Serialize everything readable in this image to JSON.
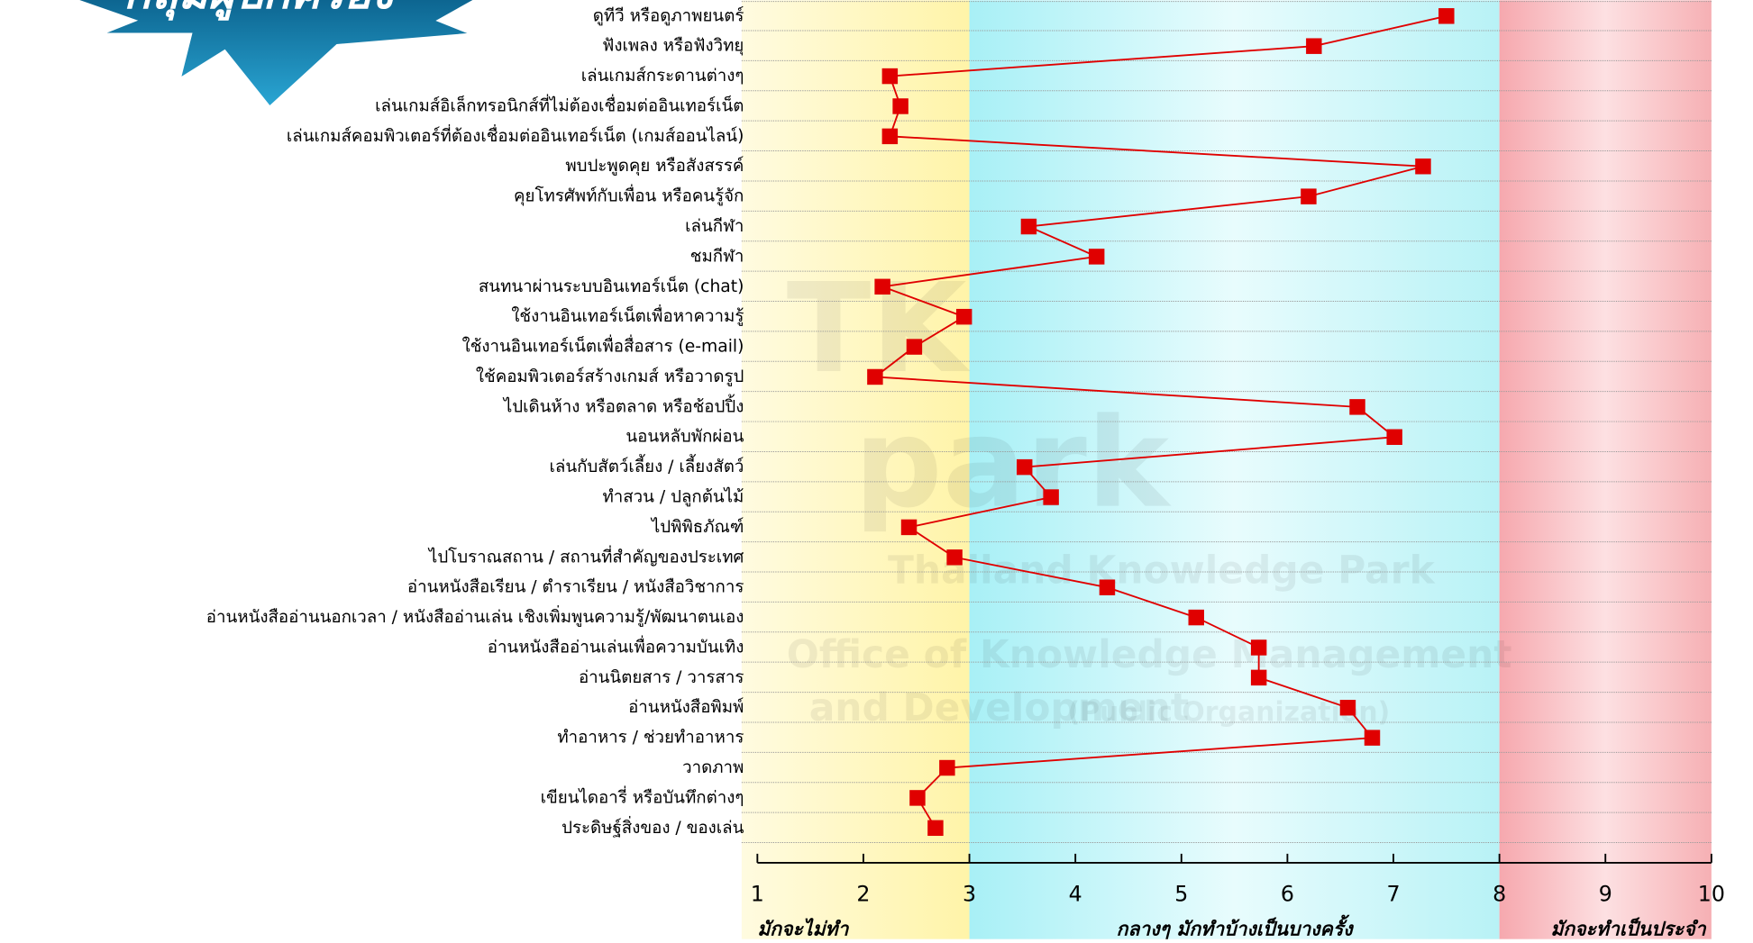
{
  "chart_data": {
    "type": "line",
    "badge": "กลุ่มผู้ปกครอง",
    "watermark": [
      "TK",
      "park",
      "Thailand Knowledge Park",
      "Office of Knowledge Management",
      "and Development",
      "(Public Organization)"
    ],
    "categories": [
      "ดูทีวี หรือดูภาพยนตร์",
      "ฟังเพลง หรือฟังวิทยุ",
      "เล่นเกมส์กระดานต่างๆ",
      "เล่นเกมส์อิเล็กทรอนิกส์ที่ไม่ต้องเชื่อมต่ออินเทอร์เน็ต",
      "เล่นเกมส์คอมพิวเตอร์ที่ต้องเชื่อมต่ออินเทอร์เน็ต (เกมส์ออนไลน์)",
      "พบปะพูดคุย หรือสังสรรค์",
      "คุยโทรศัพท์กับเพื่อน หรือคนรู้จัก",
      "เล่นกีฬา",
      "ชมกีฬา",
      "สนทนาผ่านระบบอินเทอร์เน็ต (chat)",
      "ใช้งานอินเทอร์เน็ตเพื่อหาความรู้",
      "ใช้งานอินเทอร์เน็ตเพื่อสื่อสาร (e-mail)",
      "ใช้คอมพิวเตอร์สร้างเกมส์ หรือวาดรูป",
      "ไปเดินห้าง หรือตลาด หรือช้อปปิ้ง",
      "นอนหลับพักผ่อน",
      "เล่นกับสัตว์เลี้ยง / เลี้ยงสัตว์",
      "ทำสวน / ปลูกต้นไม้",
      "ไปพิพิธภัณฑ์",
      "ไปโบราณสถาน / สถานที่สำคัญของประเทศ",
      "อ่านหนังสือเรียน / ตำราเรียน / หนังสือวิชาการ",
      "อ่านหนังสืออ่านนอกเวลา / หนังสืออ่านเล่น เชิงเพิ่มพูนความรู้/พัฒนาตนเอง",
      "อ่านหนังสืออ่านเล่นเพื่อความบันเทิง",
      "อ่านนิตยสาร / วารสาร",
      "อ่านหนังสือพิมพ์",
      "ทำอาหาร / ช่วยทำอาหาร",
      "วาดภาพ",
      "เขียนไดอารี่ หรือบันทึกต่างๆ",
      "ประดิษฐ์สิ่งของ / ของเล่น"
    ],
    "series": [
      {
        "color": "#e00000",
        "values": [
          7.5,
          6.25,
          2.25,
          2.35,
          2.25,
          7.28,
          6.2,
          3.56,
          4.2,
          2.18,
          2.95,
          2.48,
          2.11,
          6.66,
          7.01,
          3.52,
          3.77,
          2.43,
          2.86,
          4.3,
          5.14,
          5.73,
          5.73,
          6.57,
          6.8,
          2.79,
          2.51,
          2.68
        ]
      }
    ],
    "xlim": [
      1,
      10
    ],
    "xticks": [
      1,
      2,
      3,
      4,
      5,
      6,
      7,
      8,
      9,
      10
    ],
    "bands": [
      {
        "from": 1,
        "to": 3,
        "color": "#fff4a8",
        "label": "มักจะไม่ทำ"
      },
      {
        "from": 3,
        "to": 8,
        "color": "#b8f4f8",
        "label": "กลางๆ มักทำบ้างเป็นบางครั้ง"
      },
      {
        "from": 8,
        "to": 10,
        "color": "#f8b8bc",
        "label": "มักจะทำเป็นประจำ"
      }
    ]
  }
}
